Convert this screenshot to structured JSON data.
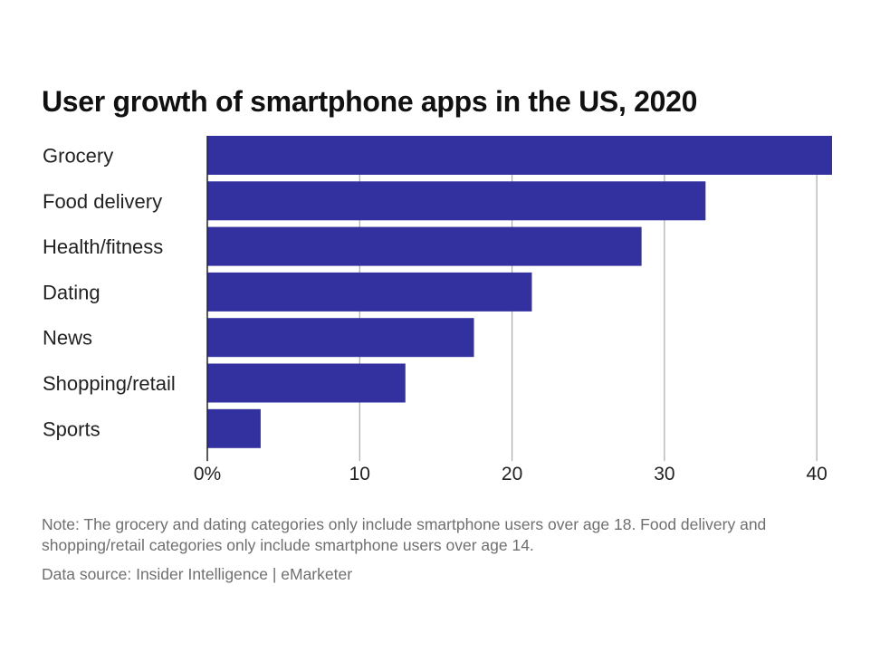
{
  "chart_data": {
    "type": "bar",
    "orientation": "horizontal",
    "title": "User growth of smartphone apps in the US, 2020",
    "categories": [
      "Grocery",
      "Food delivery",
      "Health/fitness",
      "Dating",
      "News",
      "Shopping/retail",
      "Sports"
    ],
    "values": [
      41.0,
      32.7,
      28.5,
      21.3,
      17.5,
      13.0,
      3.5
    ],
    "xlim": [
      0,
      41
    ],
    "xticks": [
      0,
      10,
      20,
      30,
      40
    ],
    "xtick_labels": [
      "0%",
      "10",
      "20",
      "30",
      "40"
    ],
    "xlabel": "",
    "ylabel": "",
    "grid": true,
    "bar_color": "#3330a0"
  },
  "footer": {
    "note": "Note: The grocery and dating categories only include smartphone users over age 18. Food delivery and shopping/retail categories only include smartphone users over age 14.",
    "source": "Data source: Insider Intelligence | eMarketer"
  },
  "colors": {
    "grid": "#aaaaaa",
    "axis": "#222222",
    "footnote": "#6f6f6f"
  }
}
